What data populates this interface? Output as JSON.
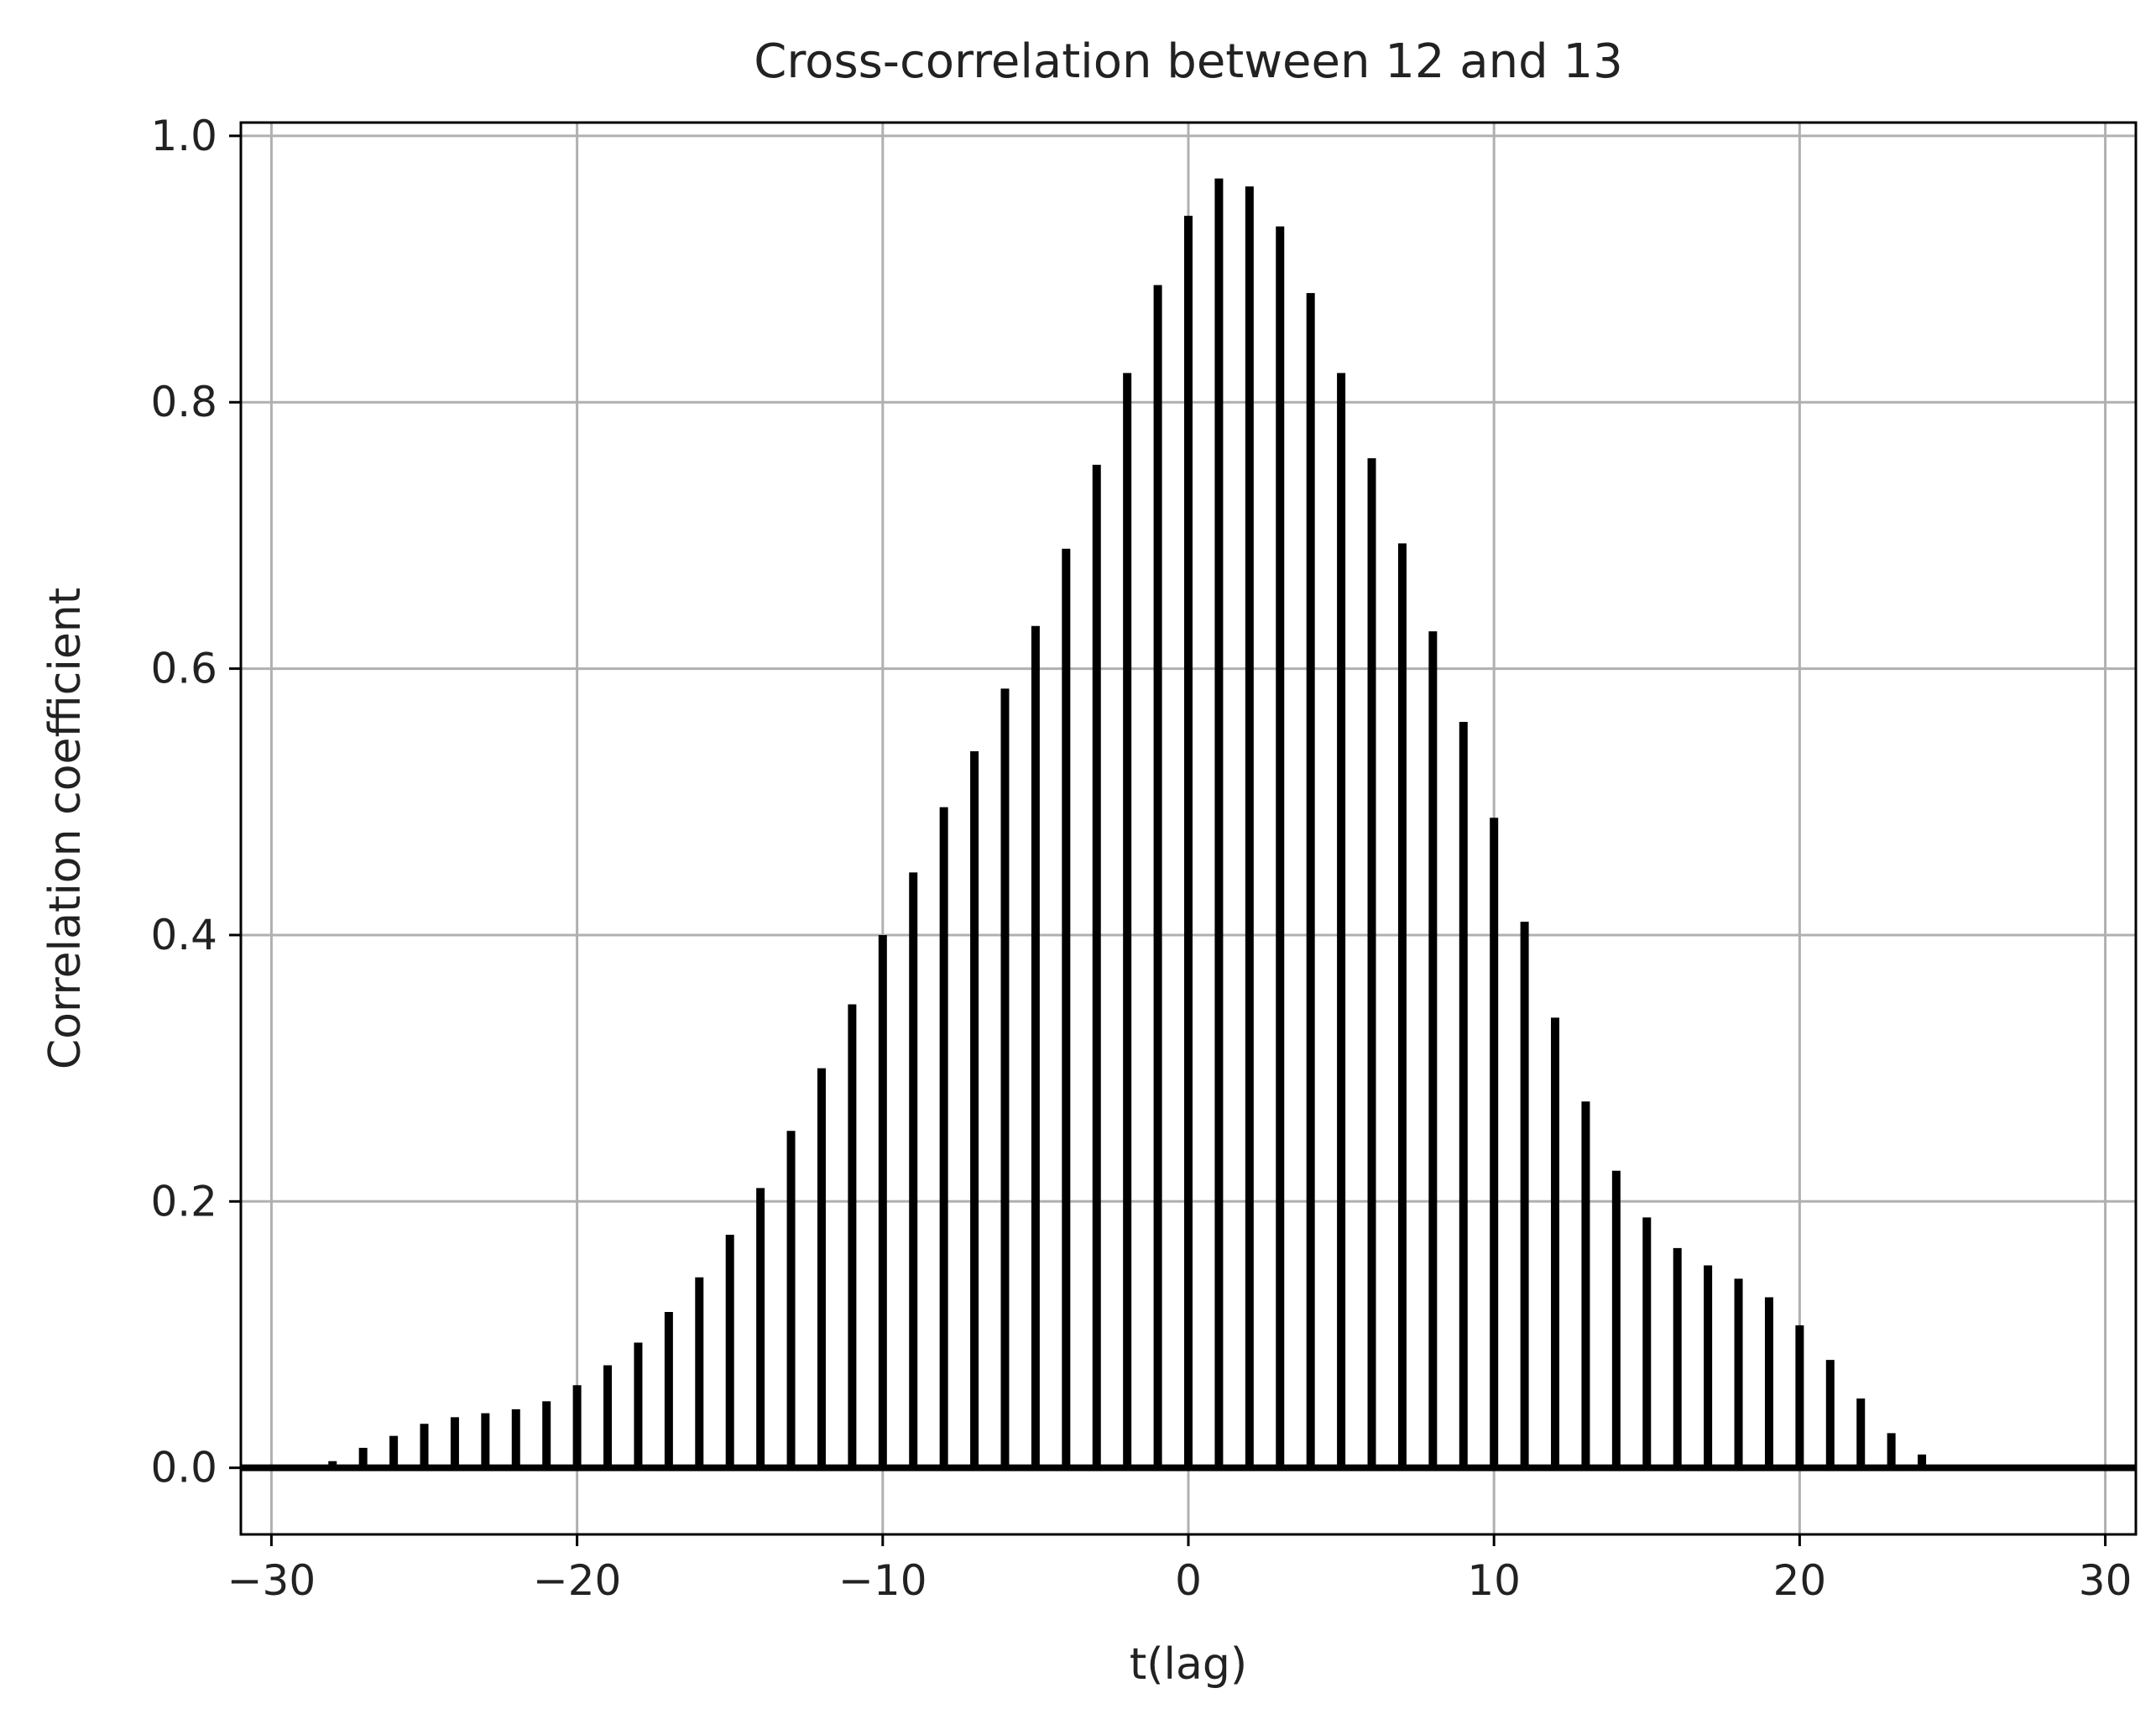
{
  "chart_data": {
    "type": "bar",
    "title": "Cross-correlation between 12 and 13",
    "xlabel": "t(lag)",
    "ylabel": "Correlation coefficient",
    "xlim": [
      -31,
      31
    ],
    "ylim": [
      -0.05,
      1.01
    ],
    "grid": true,
    "x_ticks": [
      -30,
      -20,
      -10,
      0,
      10,
      20,
      30
    ],
    "x_tick_labels": [
      "−30",
      "−20",
      "−10",
      "0",
      "10",
      "20",
      "30"
    ],
    "y_ticks": [
      0.0,
      0.2,
      0.4,
      0.6,
      0.8,
      1.0
    ],
    "y_tick_labels": [
      "0.0",
      "0.2",
      "0.4",
      "0.6",
      "0.8",
      "1.0"
    ],
    "baseline": 0,
    "bar_color": "#000000",
    "x": [
      -30,
      -29,
      -28,
      -27,
      -26,
      -25,
      -24,
      -23,
      -22,
      -21,
      -20,
      -19,
      -18,
      -17,
      -16,
      -15,
      -14,
      -13,
      -12,
      -11,
      -10,
      -9,
      -8,
      -7,
      -6,
      -5,
      -4,
      -3,
      -2,
      -1,
      0,
      1,
      2,
      3,
      4,
      5,
      6,
      7,
      8,
      9,
      10,
      11,
      12,
      13,
      14,
      15,
      16,
      17,
      18,
      19,
      20,
      21,
      22,
      23,
      24,
      25,
      26,
      27,
      28,
      29,
      30
    ],
    "values": [
      0.0,
      0.0,
      0.005,
      0.015,
      0.024,
      0.033,
      0.038,
      0.041,
      0.044,
      0.05,
      0.062,
      0.077,
      0.094,
      0.117,
      0.143,
      0.175,
      0.21,
      0.253,
      0.3,
      0.348,
      0.4,
      0.447,
      0.496,
      0.538,
      0.585,
      0.632,
      0.69,
      0.753,
      0.822,
      0.888,
      0.94,
      0.968,
      0.962,
      0.932,
      0.882,
      0.822,
      0.758,
      0.694,
      0.628,
      0.56,
      0.488,
      0.41,
      0.338,
      0.275,
      0.223,
      0.188,
      0.165,
      0.152,
      0.142,
      0.128,
      0.107,
      0.081,
      0.052,
      0.026,
      0.01,
      0.0,
      0.0,
      0.0,
      0.0,
      0.0,
      0.0
    ]
  }
}
